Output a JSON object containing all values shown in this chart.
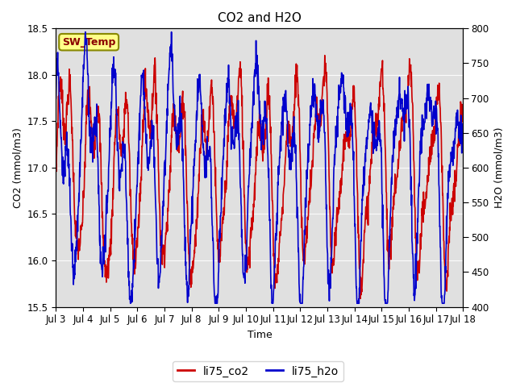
{
  "title": "CO2 and H2O",
  "xlabel": "Time",
  "ylabel_left": "CO2 (mmol/m3)",
  "ylabel_right": "H2O (mmol/m3)",
  "co2_ylim": [
    15.5,
    18.5
  ],
  "h2o_ylim": [
    400,
    800
  ],
  "co2_yticks": [
    15.5,
    16.0,
    16.5,
    17.0,
    17.5,
    18.0,
    18.5
  ],
  "h2o_yticks": [
    400,
    450,
    500,
    550,
    600,
    650,
    700,
    750,
    800
  ],
  "xtick_labels": [
    "Jul 3",
    "Jul 4",
    "Jul 5",
    "Jul 6",
    "Jul 7",
    "Jul 8",
    "Jul 9",
    "Jul 10",
    "Jul 11",
    "Jul 12",
    "Jul 13",
    "Jul 14",
    "Jul 15",
    "Jul 16",
    "Jul 17",
    "Jul 18"
  ],
  "co2_color": "#CC0000",
  "h2o_color": "#0000CC",
  "bg_color": "#E0E0E0",
  "sw_temp_label": "SW_Temp",
  "sw_temp_bg": "#FFFF88",
  "sw_temp_border": "#888800",
  "legend_co2": "li75_co2",
  "legend_h2o": "li75_h2o",
  "line_width": 1.2,
  "title_fontsize": 11,
  "label_fontsize": 9,
  "tick_fontsize": 8.5
}
